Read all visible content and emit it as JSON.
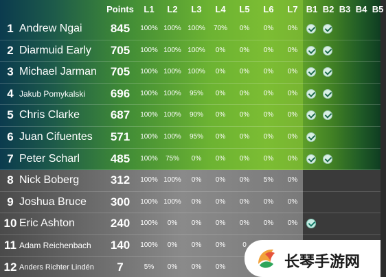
{
  "colors": {
    "top_panel_accent": "#7cbd33",
    "bottom_panel": "#7a7a7a",
    "check_fill": "#d9f0e4",
    "check_mark": "#1f6b4d"
  },
  "header": {
    "points": "Points",
    "levels": [
      "L1",
      "L2",
      "L3",
      "L4",
      "L5",
      "L6",
      "L7"
    ],
    "bonuses": [
      "B1",
      "B2",
      "B3",
      "B4",
      "B5"
    ]
  },
  "rows": [
    {
      "rank": "1",
      "name": "Andrew Ngai",
      "points": "845",
      "levels": [
        "100%",
        "100%",
        "100%",
        "70%",
        "0%",
        "0%",
        "0%"
      ],
      "bonus": [
        true,
        true,
        false,
        false,
        false
      ]
    },
    {
      "rank": "2",
      "name": "Diarmuid Early",
      "points": "705",
      "levels": [
        "100%",
        "100%",
        "100%",
        "0%",
        "0%",
        "0%",
        "0%"
      ],
      "bonus": [
        true,
        true,
        false,
        false,
        false
      ]
    },
    {
      "rank": "3",
      "name": "Michael Jarman",
      "points": "705",
      "levels": [
        "100%",
        "100%",
        "100%",
        "0%",
        "0%",
        "0%",
        "0%"
      ],
      "bonus": [
        true,
        true,
        false,
        false,
        false
      ]
    },
    {
      "rank": "4",
      "name": "Jakub Pomykalski",
      "points": "696",
      "levels": [
        "100%",
        "100%",
        "95%",
        "0%",
        "0%",
        "0%",
        "0%"
      ],
      "bonus": [
        true,
        true,
        false,
        false,
        false
      ]
    },
    {
      "rank": "5",
      "name": "Chris Clarke",
      "points": "687",
      "levels": [
        "100%",
        "100%",
        "90%",
        "0%",
        "0%",
        "0%",
        "0%"
      ],
      "bonus": [
        true,
        true,
        false,
        false,
        false
      ]
    },
    {
      "rank": "6",
      "name": "Juan Cifuentes",
      "points": "571",
      "levels": [
        "100%",
        "100%",
        "95%",
        "0%",
        "0%",
        "0%",
        "0%"
      ],
      "bonus": [
        true,
        false,
        false,
        false,
        false
      ]
    },
    {
      "rank": "7",
      "name": "Peter Scharl",
      "points": "485",
      "levels": [
        "100%",
        "75%",
        "0%",
        "0%",
        "0%",
        "0%",
        "0%"
      ],
      "bonus": [
        true,
        true,
        false,
        false,
        false
      ]
    },
    {
      "rank": "8",
      "name": "Nick Boberg",
      "points": "312",
      "levels": [
        "100%",
        "100%",
        "0%",
        "0%",
        "0%",
        "5%",
        "0%"
      ],
      "bonus": [
        false,
        false,
        false,
        false,
        false
      ]
    },
    {
      "rank": "9",
      "name": "Joshua Bruce",
      "points": "300",
      "levels": [
        "100%",
        "100%",
        "0%",
        "0%",
        "0%",
        "0%",
        "0%"
      ],
      "bonus": [
        false,
        false,
        false,
        false,
        false
      ]
    },
    {
      "rank": "10",
      "name": "Eric Ashton",
      "points": "240",
      "levels": [
        "100%",
        "0%",
        "0%",
        "0%",
        "0%",
        "0%",
        "0%"
      ],
      "bonus": [
        true,
        false,
        false,
        false,
        false
      ]
    },
    {
      "rank": "11",
      "name": "Adam Reichenbach",
      "points": "140",
      "levels": [
        "100%",
        "0%",
        "0%",
        "0%",
        "0",
        "",
        ""
      ],
      "bonus": [
        false,
        false,
        false,
        false,
        false
      ]
    },
    {
      "rank": "12",
      "name": "Anders Richter Lindén",
      "points": "7",
      "levels": [
        "5%",
        "0%",
        "0%",
        "0%",
        "",
        "",
        ""
      ],
      "bonus": [
        false,
        false,
        false,
        false,
        false
      ]
    }
  ],
  "watermark": {
    "text": "长琴手游网"
  }
}
